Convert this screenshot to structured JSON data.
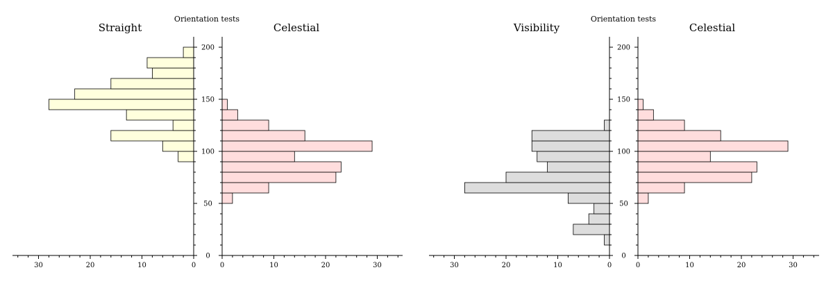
{
  "chart_data": [
    {
      "type": "bar",
      "orientation": "horizontal",
      "title": "Orientation tests",
      "y_axis": {
        "ticks": [
          0,
          50,
          100,
          150,
          200
        ],
        "ylim": [
          0,
          210
        ]
      },
      "panels": [
        {
          "title": "Straight",
          "direction": "left",
          "color": "#ffffdd",
          "xlim": [
            0,
            35
          ],
          "xticks": [
            30,
            20,
            10,
            0
          ],
          "bins": [
            {
              "y0": 90,
              "y1": 100,
              "value": 3
            },
            {
              "y0": 100,
              "y1": 110,
              "value": 6
            },
            {
              "y0": 110,
              "y1": 120,
              "value": 16
            },
            {
              "y0": 120,
              "y1": 130,
              "value": 4
            },
            {
              "y0": 130,
              "y1": 140,
              "value": 13
            },
            {
              "y0": 140,
              "y1": 150,
              "value": 28
            },
            {
              "y0": 150,
              "y1": 160,
              "value": 23
            },
            {
              "y0": 160,
              "y1": 170,
              "value": 16
            },
            {
              "y0": 170,
              "y1": 180,
              "value": 8
            },
            {
              "y0": 180,
              "y1": 190,
              "value": 9
            },
            {
              "y0": 190,
              "y1": 200,
              "value": 2
            }
          ]
        },
        {
          "title": "Celestial",
          "direction": "right",
          "color": "#ffdddd",
          "xlim": [
            0,
            35
          ],
          "xticks": [
            0,
            10,
            20,
            30
          ],
          "bins": [
            {
              "y0": 50,
              "y1": 60,
              "value": 2
            },
            {
              "y0": 60,
              "y1": 70,
              "value": 9
            },
            {
              "y0": 70,
              "y1": 80,
              "value": 22
            },
            {
              "y0": 80,
              "y1": 90,
              "value": 23
            },
            {
              "y0": 90,
              "y1": 100,
              "value": 14
            },
            {
              "y0": 100,
              "y1": 110,
              "value": 29
            },
            {
              "y0": 110,
              "y1": 120,
              "value": 16
            },
            {
              "y0": 120,
              "y1": 130,
              "value": 9
            },
            {
              "y0": 130,
              "y1": 140,
              "value": 3
            },
            {
              "y0": 140,
              "y1": 150,
              "value": 1
            }
          ]
        }
      ]
    },
    {
      "type": "bar",
      "orientation": "horizontal",
      "title": "Orientation tests",
      "y_axis": {
        "ticks": [
          0,
          50,
          100,
          150,
          200
        ],
        "ylim": [
          0,
          210
        ]
      },
      "panels": [
        {
          "title": "Visibility",
          "direction": "left",
          "color": "#dddddd",
          "xlim": [
            0,
            35
          ],
          "xticks": [
            30,
            20,
            10,
            0
          ],
          "bins": [
            {
              "y0": 10,
              "y1": 20,
              "value": 1
            },
            {
              "y0": 20,
              "y1": 30,
              "value": 7
            },
            {
              "y0": 30,
              "y1": 40,
              "value": 4
            },
            {
              "y0": 40,
              "y1": 50,
              "value": 3
            },
            {
              "y0": 50,
              "y1": 60,
              "value": 8
            },
            {
              "y0": 60,
              "y1": 70,
              "value": 28
            },
            {
              "y0": 70,
              "y1": 80,
              "value": 20
            },
            {
              "y0": 80,
              "y1": 90,
              "value": 12
            },
            {
              "y0": 90,
              "y1": 100,
              "value": 14
            },
            {
              "y0": 100,
              "y1": 110,
              "value": 15
            },
            {
              "y0": 110,
              "y1": 120,
              "value": 15
            },
            {
              "y0": 120,
              "y1": 130,
              "value": 1
            }
          ]
        },
        {
          "title": "Celestial",
          "direction": "right",
          "color": "#ffdddd",
          "xlim": [
            0,
            35
          ],
          "xticks": [
            0,
            10,
            20,
            30
          ],
          "bins": [
            {
              "y0": 50,
              "y1": 60,
              "value": 2
            },
            {
              "y0": 60,
              "y1": 70,
              "value": 9
            },
            {
              "y0": 70,
              "y1": 80,
              "value": 22
            },
            {
              "y0": 80,
              "y1": 90,
              "value": 23
            },
            {
              "y0": 90,
              "y1": 100,
              "value": 14
            },
            {
              "y0": 100,
              "y1": 110,
              "value": 29
            },
            {
              "y0": 110,
              "y1": 120,
              "value": 16
            },
            {
              "y0": 120,
              "y1": 130,
              "value": 9
            },
            {
              "y0": 130,
              "y1": 140,
              "value": 3
            },
            {
              "y0": 140,
              "y1": 150,
              "value": 1
            }
          ]
        }
      ]
    }
  ]
}
